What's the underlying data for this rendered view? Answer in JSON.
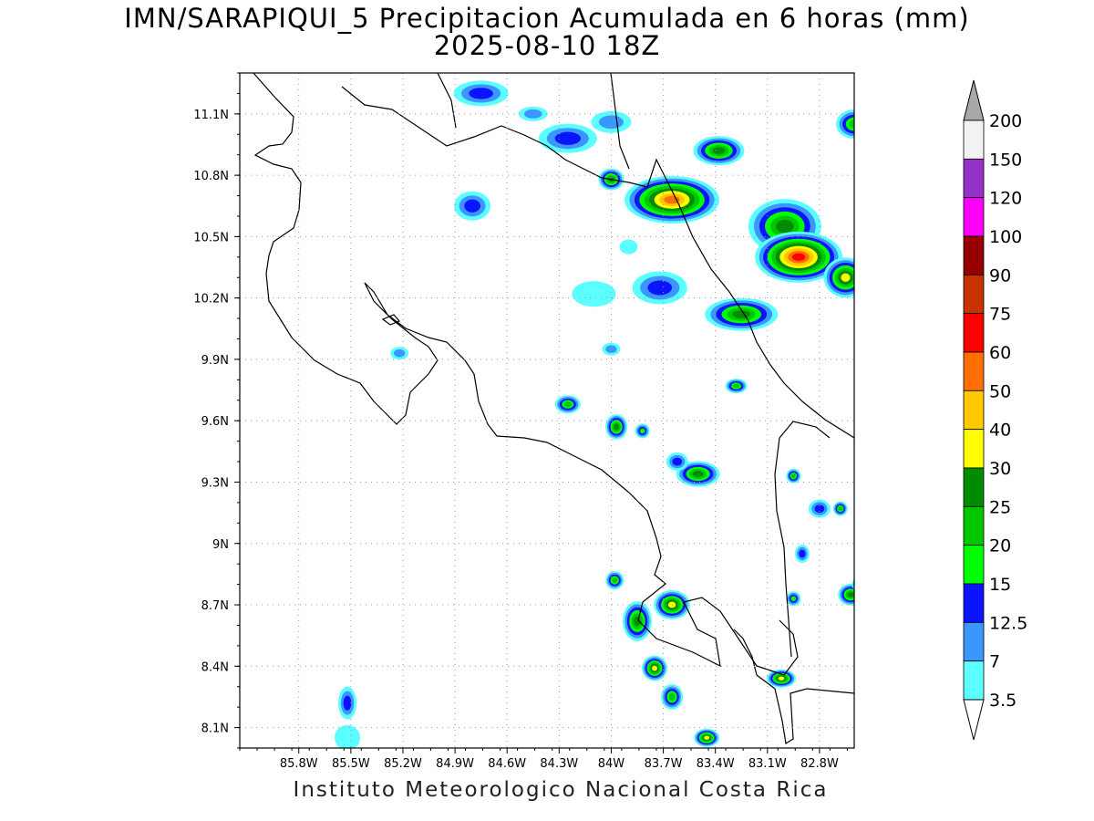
{
  "title_line1": "IMN/SARAPIQUI_5 Precipitacion Acumulada en 6 horas (mm)",
  "title_line2": "2025-08-10 18Z",
  "footer": "Instituto Meteorologico Nacional Costa Rica",
  "axes": {
    "x_ticks": [
      "85.8W",
      "85.5W",
      "85.2W",
      "84.9W",
      "84.6W",
      "84.3W",
      "84W",
      "83.7W",
      "83.4W",
      "83.1W",
      "82.8W"
    ],
    "x_values": [
      -85.8,
      -85.5,
      -85.2,
      -84.9,
      -84.6,
      -84.3,
      -84.0,
      -83.7,
      -83.4,
      -83.1,
      -82.8
    ],
    "y_ticks": [
      "11.1N",
      "10.8N",
      "10.5N",
      "10.2N",
      "9.9N",
      "9.6N",
      "9.3N",
      "9N",
      "8.7N",
      "8.4N",
      "8.1N"
    ],
    "y_values": [
      11.1,
      10.8,
      10.5,
      10.2,
      9.9,
      9.6,
      9.3,
      9.0,
      8.7,
      8.4,
      8.1
    ],
    "lon_range": [
      -86.14,
      -82.6
    ],
    "lat_range": [
      8.0,
      11.3
    ],
    "grid": "dotted"
  },
  "legend": {
    "labels": [
      "3.5",
      "7",
      "12.5",
      "15",
      "20",
      "25",
      "30",
      "40",
      "50",
      "60",
      "75",
      "90",
      "100",
      "120",
      "150",
      "200"
    ],
    "colors": [
      "#ffffff",
      "#5cffff",
      "#3c96ff",
      "#0a14ff",
      "#00ff00",
      "#00c800",
      "#008c00",
      "#ffff00",
      "#ffc800",
      "#ff6e00",
      "#ff0000",
      "#c83200",
      "#960000",
      "#ff00ff",
      "#9632c8",
      "#f2f2f2",
      "#a8a8a8"
    ]
  },
  "precip_cells": [
    {
      "lon": -84.75,
      "lat": 11.2,
      "rx": 30,
      "ry": 14,
      "level": 3
    },
    {
      "lon": -84.45,
      "lat": 11.1,
      "rx": 16,
      "ry": 8,
      "level": 2
    },
    {
      "lon": -84.25,
      "lat": 10.98,
      "rx": 32,
      "ry": 16,
      "level": 3
    },
    {
      "lon": -84.0,
      "lat": 11.06,
      "rx": 22,
      "ry": 12,
      "level": 2
    },
    {
      "lon": -84.8,
      "lat": 10.65,
      "rx": 20,
      "ry": 16,
      "level": 3
    },
    {
      "lon": -84.0,
      "lat": 10.78,
      "rx": 14,
      "ry": 12,
      "level": 6
    },
    {
      "lon": -83.65,
      "lat": 10.68,
      "rx": 52,
      "ry": 26,
      "level": 9
    },
    {
      "lon": -83.38,
      "lat": 10.92,
      "rx": 28,
      "ry": 16,
      "level": 6
    },
    {
      "lon": -83.0,
      "lat": 10.55,
      "rx": 40,
      "ry": 30,
      "level": 6
    },
    {
      "lon": -82.92,
      "lat": 10.4,
      "rx": 48,
      "ry": 28,
      "level": 10
    },
    {
      "lon": -82.65,
      "lat": 10.3,
      "rx": 24,
      "ry": 22,
      "level": 7
    },
    {
      "lon": -82.6,
      "lat": 11.05,
      "rx": 20,
      "ry": 16,
      "level": 5
    },
    {
      "lon": -83.25,
      "lat": 10.12,
      "rx": 40,
      "ry": 18,
      "level": 6
    },
    {
      "lon": -83.72,
      "lat": 10.25,
      "rx": 30,
      "ry": 18,
      "level": 3
    },
    {
      "lon": -84.1,
      "lat": 10.22,
      "rx": 24,
      "ry": 14,
      "level": 1
    },
    {
      "lon": -84.25,
      "lat": 9.68,
      "rx": 14,
      "ry": 10,
      "level": 5
    },
    {
      "lon": -83.97,
      "lat": 9.57,
      "rx": 12,
      "ry": 14,
      "level": 6
    },
    {
      "lon": -83.82,
      "lat": 9.55,
      "rx": 8,
      "ry": 8,
      "level": 4
    },
    {
      "lon": -83.5,
      "lat": 9.34,
      "rx": 24,
      "ry": 14,
      "level": 6
    },
    {
      "lon": -83.62,
      "lat": 9.4,
      "rx": 12,
      "ry": 10,
      "level": 3
    },
    {
      "lon": -83.28,
      "lat": 9.77,
      "rx": 12,
      "ry": 8,
      "level": 5
    },
    {
      "lon": -82.95,
      "lat": 9.33,
      "rx": 8,
      "ry": 8,
      "level": 5
    },
    {
      "lon": -82.8,
      "lat": 9.17,
      "rx": 12,
      "ry": 10,
      "level": 3
    },
    {
      "lon": -82.68,
      "lat": 9.17,
      "rx": 8,
      "ry": 8,
      "level": 5
    },
    {
      "lon": -82.9,
      "lat": 8.95,
      "rx": 8,
      "ry": 10,
      "level": 3
    },
    {
      "lon": -83.98,
      "lat": 8.82,
      "rx": 10,
      "ry": 10,
      "level": 5
    },
    {
      "lon": -83.85,
      "lat": 8.62,
      "rx": 16,
      "ry": 22,
      "level": 6
    },
    {
      "lon": -83.65,
      "lat": 8.7,
      "rx": 20,
      "ry": 16,
      "level": 7
    },
    {
      "lon": -83.75,
      "lat": 8.39,
      "rx": 14,
      "ry": 14,
      "level": 7
    },
    {
      "lon": -83.65,
      "lat": 8.25,
      "rx": 12,
      "ry": 14,
      "level": 5
    },
    {
      "lon": -83.45,
      "lat": 8.05,
      "rx": 14,
      "ry": 10,
      "level": 7
    },
    {
      "lon": -83.02,
      "lat": 8.34,
      "rx": 16,
      "ry": 10,
      "level": 7
    },
    {
      "lon": -82.62,
      "lat": 8.75,
      "rx": 14,
      "ry": 12,
      "level": 6
    },
    {
      "lon": -82.55,
      "lat": 8.8,
      "rx": 12,
      "ry": 10,
      "level": 10
    },
    {
      "lon": -82.95,
      "lat": 8.73,
      "rx": 8,
      "ry": 8,
      "level": 4
    },
    {
      "lon": -85.52,
      "lat": 8.22,
      "rx": 10,
      "ry": 18,
      "level": 3
    },
    {
      "lon": -85.52,
      "lat": 8.05,
      "rx": 14,
      "ry": 14,
      "level": 1
    },
    {
      "lon": -85.22,
      "lat": 9.93,
      "rx": 10,
      "ry": 7,
      "level": 2
    },
    {
      "lon": -83.9,
      "lat": 10.45,
      "rx": 10,
      "ry": 8,
      "level": 1
    },
    {
      "lon": -84.0,
      "lat": 9.95,
      "rx": 10,
      "ry": 7,
      "level": 2
    }
  ]
}
